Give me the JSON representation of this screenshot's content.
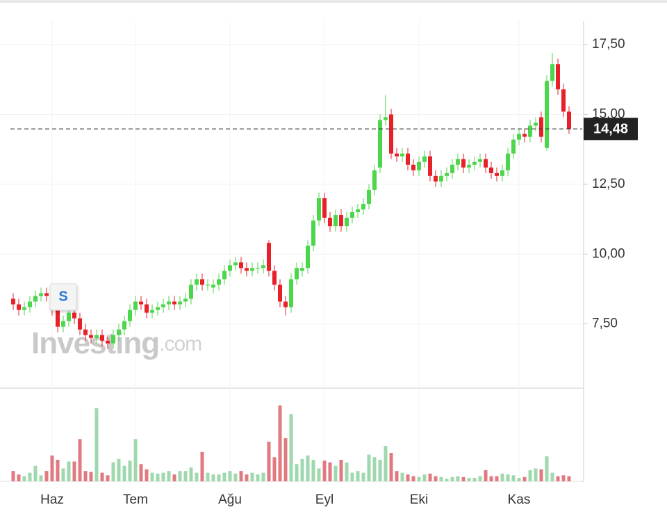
{
  "chart_data": {
    "type": "candlestick",
    "categories": [
      null,
      null,
      null,
      null,
      null,
      null,
      null,
      "Haz",
      null,
      null,
      null,
      null,
      null,
      null,
      null,
      null,
      null,
      null,
      null,
      null,
      null,
      null,
      "Tem",
      null,
      null,
      null,
      null,
      null,
      null,
      null,
      null,
      null,
      null,
      null,
      null,
      null,
      null,
      null,
      null,
      "Ağu",
      null,
      null,
      null,
      null,
      null,
      null,
      null,
      null,
      null,
      null,
      null,
      null,
      null,
      null,
      null,
      null,
      "Eyl",
      null,
      null,
      null,
      null,
      null,
      null,
      null,
      null,
      null,
      null,
      null,
      null,
      null,
      null,
      null,
      null,
      "Eki",
      null,
      null,
      null,
      null,
      null,
      null,
      null,
      null,
      null,
      null,
      null,
      null,
      null,
      null,
      null,
      null,
      null,
      "Kas",
      null,
      null,
      null,
      null,
      null,
      null,
      null,
      null,
      null
    ],
    "open": [
      8.4,
      8.2,
      8.0,
      8.1,
      8.3,
      8.5,
      8.6,
      8.5,
      8.0,
      7.4,
      7.6,
      7.9,
      7.7,
      7.3,
      7.1,
      7.0,
      7.1,
      6.9,
      6.8,
      7.1,
      7.3,
      7.6,
      8.0,
      8.3,
      8.2,
      7.9,
      8.0,
      8.1,
      8.2,
      8.3,
      8.2,
      8.3,
      8.4,
      8.9,
      9.1,
      8.9,
      8.8,
      8.9,
      9.1,
      9.4,
      9.6,
      9.7,
      9.5,
      9.4,
      9.5,
      9.5,
      10.4,
      9.4,
      8.9,
      8.3,
      8.1,
      9.1,
      9.4,
      9.5,
      10.3,
      11.2,
      12.0,
      11.3,
      11.0,
      11.4,
      11.0,
      11.3,
      11.5,
      11.6,
      11.8,
      12.3,
      13.1,
      14.8,
      15.0,
      13.6,
      13.5,
      13.6,
      13.2,
      13.0,
      13.3,
      13.5,
      12.8,
      12.6,
      12.8,
      12.9,
      13.2,
      13.4,
      13.1,
      13.2,
      13.3,
      13.4,
      13.1,
      12.9,
      12.8,
      13.0,
      13.6,
      14.1,
      14.3,
      14.2,
      14.6,
      14.9,
      13.8,
      16.2,
      16.8,
      15.9,
      15.1
    ],
    "high": [
      8.6,
      8.4,
      8.3,
      8.5,
      8.7,
      8.8,
      8.8,
      8.7,
      8.2,
      7.8,
      8.1,
      8.1,
      7.9,
      7.5,
      7.3,
      7.3,
      7.3,
      7.1,
      7.3,
      7.5,
      7.8,
      8.2,
      8.5,
      8.5,
      8.4,
      8.2,
      8.3,
      8.4,
      8.5,
      8.5,
      8.5,
      8.6,
      9.1,
      9.3,
      9.3,
      9.1,
      9.1,
      9.3,
      9.6,
      9.8,
      9.9,
      9.9,
      9.7,
      9.7,
      9.7,
      9.8,
      10.5,
      9.6,
      9.1,
      8.5,
      9.3,
      9.7,
      9.7,
      10.5,
      11.4,
      12.2,
      12.2,
      11.5,
      11.6,
      11.6,
      11.5,
      11.7,
      11.8,
      12.0,
      12.5,
      13.2,
      15.0,
      15.7,
      15.2,
      13.8,
      13.8,
      13.8,
      13.4,
      13.5,
      13.7,
      13.7,
      13.0,
      13.0,
      13.1,
      13.4,
      13.6,
      13.6,
      13.4,
      13.5,
      13.6,
      13.6,
      13.3,
      13.1,
      13.2,
      13.8,
      14.3,
      14.5,
      14.5,
      14.8,
      14.9,
      15.1,
      16.4,
      17.2,
      17.0,
      16.1,
      15.3
    ],
    "low": [
      8.0,
      7.8,
      7.8,
      7.9,
      8.1,
      8.3,
      8.3,
      7.8,
      7.2,
      7.2,
      7.4,
      7.5,
      7.1,
      6.9,
      6.8,
      6.8,
      6.7,
      6.6,
      6.6,
      6.9,
      7.1,
      7.4,
      7.8,
      8.0,
      7.7,
      7.7,
      7.8,
      7.9,
      8.0,
      8.0,
      8.0,
      8.1,
      8.2,
      8.7,
      8.7,
      8.7,
      8.6,
      8.7,
      8.9,
      9.2,
      9.4,
      9.3,
      9.2,
      9.2,
      9.3,
      9.3,
      9.2,
      8.7,
      8.1,
      7.8,
      7.9,
      8.9,
      9.2,
      9.3,
      10.1,
      11.0,
      11.1,
      10.8,
      10.8,
      10.8,
      10.8,
      11.1,
      11.3,
      11.4,
      11.6,
      12.1,
      12.9,
      14.6,
      13.4,
      13.3,
      13.3,
      13.0,
      12.8,
      12.8,
      13.1,
      12.6,
      12.4,
      12.4,
      12.6,
      12.7,
      13.0,
      12.9,
      12.9,
      13.0,
      13.1,
      12.9,
      12.7,
      12.6,
      12.6,
      12.8,
      13.4,
      13.9,
      14.0,
      14.0,
      14.4,
      14.0,
      13.7,
      16.0,
      15.7,
      14.9,
      14.3
    ],
    "close": [
      8.2,
      8.0,
      8.1,
      8.3,
      8.5,
      8.6,
      8.5,
      8.0,
      7.4,
      7.6,
      7.9,
      7.7,
      7.3,
      7.1,
      7.0,
      7.1,
      6.9,
      6.8,
      7.1,
      7.3,
      7.6,
      8.0,
      8.3,
      8.2,
      7.9,
      8.0,
      8.1,
      8.2,
      8.3,
      8.2,
      8.3,
      8.4,
      8.9,
      9.1,
      8.9,
      8.9,
      8.9,
      9.1,
      9.4,
      9.6,
      9.7,
      9.5,
      9.4,
      9.5,
      9.5,
      9.6,
      9.4,
      8.9,
      8.3,
      8.1,
      9.1,
      9.5,
      9.5,
      10.3,
      11.2,
      12.0,
      11.3,
      11.0,
      11.4,
      11.0,
      11.3,
      11.5,
      11.6,
      11.8,
      12.3,
      13.0,
      14.8,
      14.9,
      13.6,
      13.5,
      13.6,
      13.2,
      13.0,
      13.3,
      13.5,
      12.8,
      12.6,
      12.8,
      12.9,
      13.2,
      13.4,
      13.1,
      13.2,
      13.3,
      13.4,
      13.1,
      12.9,
      12.8,
      13.0,
      13.6,
      14.1,
      14.3,
      14.2,
      14.6,
      14.7,
      14.2,
      16.2,
      16.8,
      15.9,
      15.1,
      14.48
    ],
    "volume": [
      1.2,
      0.8,
      0.6,
      1.0,
      1.8,
      0.7,
      1.2,
      3.0,
      2.5,
      1.5,
      2.3,
      2.3,
      4.9,
      1.2,
      1.1,
      8.5,
      1.0,
      0.7,
      2.2,
      2.6,
      1.8,
      2.4,
      4.9,
      2.0,
      1.4,
      1.0,
      0.9,
      1.0,
      1.2,
      0.8,
      1.2,
      1.2,
      1.6,
      1.0,
      3.4,
      1.0,
      0.8,
      0.8,
      1.0,
      1.2,
      0.9,
      1.2,
      0.8,
      1.0,
      0.8,
      1.0,
      4.6,
      2.8,
      8.8,
      5.0,
      7.8,
      2.0,
      2.6,
      3.0,
      2.5,
      1.5,
      2.4,
      2.2,
      1.8,
      2.5,
      2.2,
      1.0,
      1.2,
      1.0,
      3.1,
      2.8,
      2.5,
      4.1,
      3.3,
      1.2,
      1.0,
      0.8,
      0.6,
      0.5,
      0.8,
      0.9,
      0.6,
      0.5,
      0.3,
      0.5,
      0.6,
      0.5,
      0.4,
      0.4,
      0.6,
      1.3,
      0.6,
      0.6,
      0.9,
      0.8,
      0.7,
      0.4,
      0.5,
      1.3,
      1.5,
      1.4,
      2.9,
      1.0,
      0.6,
      0.7,
      0.6
    ],
    "ylim": [
      5.2,
      18.35
    ],
    "yticks": [
      {
        "value": 7.5,
        "label": "7,50"
      },
      {
        "value": 10,
        "label": "10,00"
      },
      {
        "value": 12.5,
        "label": "12,50"
      },
      {
        "value": 15,
        "label": "15,00"
      },
      {
        "value": 17.5,
        "label": "17,50"
      }
    ],
    "current": {
      "value": 14.48,
      "label": "14,48"
    },
    "marker": {
      "index": 9,
      "label": "S"
    },
    "watermark": {
      "brand": "Investing",
      "suffix": ".com"
    },
    "grid": true,
    "up_color": "#4cd64c",
    "down_color": "#e8202a",
    "volume_up_color": "#9fd8ae",
    "volume_down_color": "#e07a80"
  }
}
